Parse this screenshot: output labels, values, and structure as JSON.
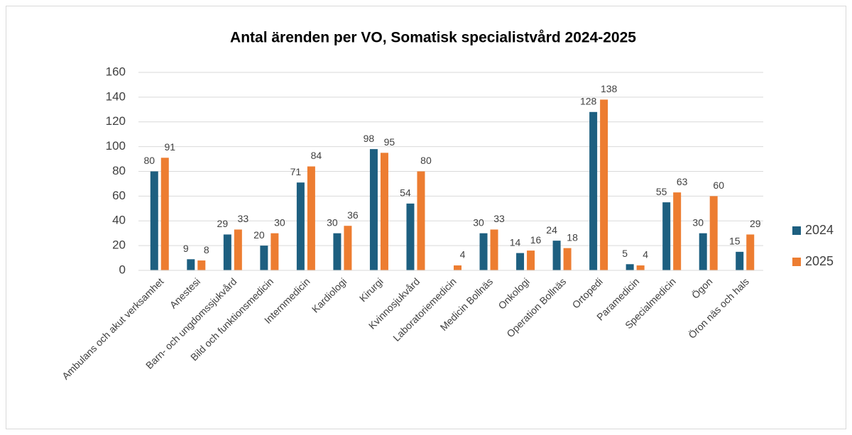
{
  "chart_data": {
    "type": "bar",
    "title": "Antal ärenden per VO, Somatisk specialistvård 2024-2025",
    "categories": [
      "Ambulans och akut verksamhet",
      "Anestesi",
      "Barn- och ungdomssjukvård",
      "Bild och funktionsmedicin",
      "Internmedicin",
      "Kardiologi",
      "Kirurgi",
      "Kvinnosjukvård",
      "Laboratoriemedicin",
      "Medicin Bollnäs",
      "Onkologi",
      "Operation Bollnäs",
      "Ortopedi",
      "Paramedicin",
      "Specialmedicin",
      "Ögon",
      "Öron näs och hals"
    ],
    "series": [
      {
        "name": "2024",
        "color": "#1d5f80",
        "values": [
          80,
          9,
          29,
          20,
          71,
          30,
          98,
          54,
          null,
          30,
          14,
          24,
          128,
          5,
          55,
          30,
          15
        ]
      },
      {
        "name": "2025",
        "color": "#ed7d31",
        "values": [
          91,
          8,
          33,
          30,
          84,
          36,
          95,
          80,
          4,
          33,
          16,
          18,
          138,
          4,
          63,
          60,
          29
        ]
      }
    ],
    "ylim": [
      0,
      160
    ],
    "yticks": [
      0,
      20,
      40,
      60,
      80,
      100,
      120,
      140,
      160
    ],
    "grid": true,
    "legend": "right"
  }
}
